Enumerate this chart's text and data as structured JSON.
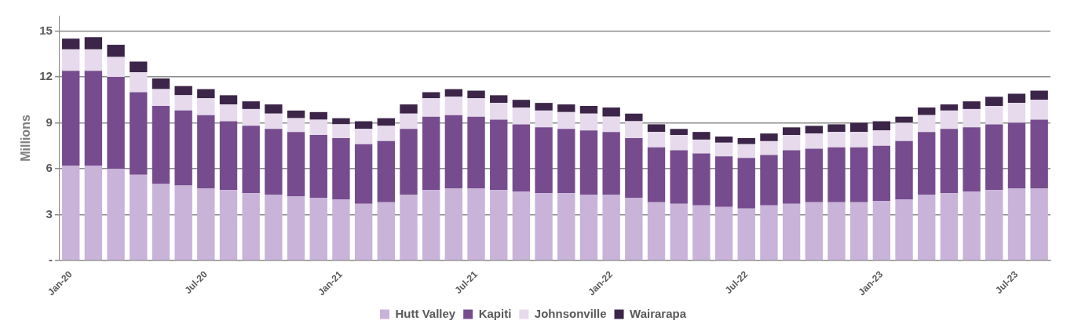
{
  "chart_data": {
    "type": "bar",
    "stacked": true,
    "ylabel": "Millions",
    "categories": [
      "Jan-20",
      null,
      null,
      null,
      null,
      null,
      "Jul-20",
      null,
      null,
      null,
      null,
      null,
      "Jan-21",
      null,
      null,
      null,
      null,
      null,
      "Jul-21",
      null,
      null,
      null,
      null,
      null,
      "Jan-22",
      null,
      null,
      null,
      null,
      null,
      "Jul-22",
      null,
      null,
      null,
      null,
      null,
      "Jan-23",
      null,
      null,
      null,
      null,
      null,
      "Jul-23",
      null
    ],
    "series": [
      {
        "name": "Hutt Valley",
        "color": "#c9b3d9",
        "values": [
          6.2,
          6.2,
          6.0,
          5.6,
          5.0,
          4.9,
          4.7,
          4.6,
          4.4,
          4.3,
          4.2,
          4.1,
          4.0,
          3.7,
          3.8,
          4.3,
          4.6,
          4.7,
          4.7,
          4.6,
          4.5,
          4.4,
          4.4,
          4.3,
          4.3,
          4.1,
          3.8,
          3.7,
          3.6,
          3.5,
          3.4,
          3.6,
          3.7,
          3.8,
          3.8,
          3.8,
          3.9,
          4.0,
          4.3,
          4.4,
          4.5,
          4.6,
          4.7,
          4.7
        ]
      },
      {
        "name": "Kapiti",
        "color": "#764c8e",
        "values": [
          6.2,
          6.2,
          6.0,
          5.4,
          5.1,
          4.9,
          4.8,
          4.5,
          4.4,
          4.3,
          4.2,
          4.1,
          4.0,
          3.9,
          4.0,
          4.3,
          4.8,
          4.8,
          4.7,
          4.6,
          4.4,
          4.3,
          4.2,
          4.2,
          4.1,
          3.9,
          3.6,
          3.5,
          3.4,
          3.3,
          3.3,
          3.3,
          3.5,
          3.5,
          3.6,
          3.6,
          3.6,
          3.8,
          4.1,
          4.2,
          4.2,
          4.3,
          4.3,
          4.5
        ]
      },
      {
        "name": "Johnsonville",
        "color": "#e6daec",
        "values": [
          1.4,
          1.4,
          1.3,
          1.3,
          1.1,
          1.0,
          1.1,
          1.1,
          1.1,
          1.0,
          0.9,
          1.0,
          0.9,
          1.0,
          1.0,
          1.0,
          1.2,
          1.2,
          1.2,
          1.1,
          1.1,
          1.1,
          1.1,
          1.1,
          1.0,
          1.1,
          1.0,
          1.0,
          0.9,
          0.9,
          0.9,
          0.9,
          1.0,
          1.0,
          1.0,
          1.0,
          1.0,
          1.2,
          1.1,
          1.2,
          1.2,
          1.2,
          1.3,
          1.3
        ]
      },
      {
        "name": "Wairarapa",
        "color": "#3c2548",
        "values": [
          0.7,
          0.8,
          0.8,
          0.7,
          0.7,
          0.6,
          0.6,
          0.6,
          0.5,
          0.6,
          0.5,
          0.5,
          0.4,
          0.5,
          0.5,
          0.6,
          0.4,
          0.5,
          0.5,
          0.5,
          0.5,
          0.5,
          0.5,
          0.5,
          0.6,
          0.5,
          0.5,
          0.4,
          0.5,
          0.4,
          0.4,
          0.5,
          0.5,
          0.5,
          0.5,
          0.6,
          0.6,
          0.4,
          0.5,
          0.4,
          0.5,
          0.6,
          0.6,
          0.6
        ]
      }
    ],
    "ylim": [
      0,
      16
    ],
    "yticks": [
      {
        "value": 0,
        "label": "-"
      },
      3,
      6,
      9,
      12,
      15
    ],
    "grid": "y",
    "legend": "bottom"
  }
}
